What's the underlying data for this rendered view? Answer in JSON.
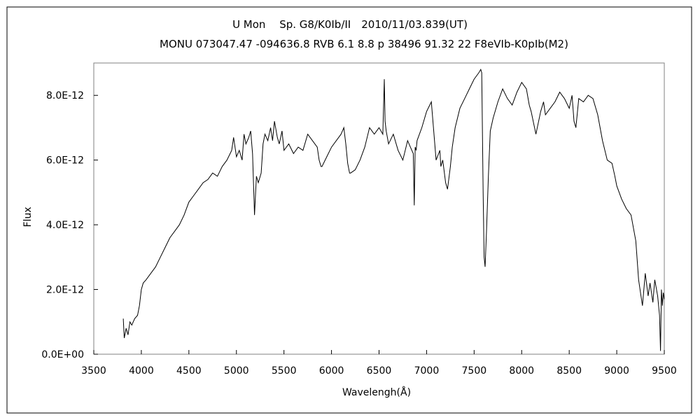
{
  "chart_data": {
    "type": "line",
    "title": "U Mon　 Sp. G8/K0Ib/II　2010/11/03.839(UT)",
    "subtitle": "MONU 073047.47 -094636.8 RVB 6.1 8.8 p 38496 91.32 22 F8eVIb-K0pIb(M2)",
    "xlabel": "Wavelengh(Å)",
    "ylabel": "Flux",
    "xlim": [
      3500,
      9500
    ],
    "ylim": [
      0,
      9e-12
    ],
    "x_ticks": [
      3500,
      4000,
      4500,
      5000,
      5500,
      6000,
      6500,
      7000,
      7500,
      8000,
      8500,
      9000,
      9500
    ],
    "x_tick_labels": [
      "3500",
      "4000",
      "4500",
      "5000",
      "5500",
      "6000",
      "6500",
      "7000",
      "7500",
      "8000",
      "8500",
      "9000",
      "9500"
    ],
    "y_ticks": [
      0,
      2e-12,
      4e-12,
      6e-12,
      8e-12
    ],
    "y_tick_labels": [
      "0.0E+00",
      "2.0E-12",
      "4.0E-12",
      "6.0E-12",
      "8.0E-12"
    ],
    "grid": false,
    "line_color": "#000000",
    "series": [
      {
        "x": [
          3810,
          3820,
          3840,
          3860,
          3880,
          3900,
          3930,
          3960,
          3980,
          4000,
          4020,
          4050,
          4100,
          4150,
          4200,
          4250,
          4300,
          4350,
          4400,
          4450,
          4500,
          4550,
          4600,
          4650,
          4700,
          4750,
          4800,
          4850,
          4900,
          4950,
          4970,
          5000,
          5030,
          5060,
          5080,
          5100,
          5130,
          5150,
          5170,
          5190,
          5210,
          5230,
          5260,
          5280,
          5300,
          5330,
          5360,
          5380,
          5400,
          5430,
          5450,
          5480,
          5500,
          5550,
          5600,
          5650,
          5700,
          5750,
          5800,
          5850,
          5870,
          5890,
          5900,
          5950,
          6000,
          6050,
          6100,
          6130,
          6150,
          6170,
          6190,
          6200,
          6250,
          6300,
          6350,
          6400,
          6450,
          6500,
          6540,
          6555,
          6563,
          6575,
          6600,
          6650,
          6700,
          6750,
          6800,
          6830,
          6860,
          6870,
          6880,
          6890,
          6900,
          6950,
          7000,
          7050,
          7100,
          7140,
          7150,
          7170,
          7200,
          7220,
          7250,
          7270,
          7300,
          7350,
          7400,
          7450,
          7500,
          7550,
          7570,
          7580,
          7595,
          7605,
          7615,
          7630,
          7650,
          7670,
          7700,
          7750,
          7800,
          7850,
          7900,
          7950,
          8000,
          8050,
          8080,
          8100,
          8150,
          8200,
          8230,
          8250,
          8300,
          8350,
          8400,
          8450,
          8500,
          8530,
          8550,
          8570,
          8600,
          8650,
          8700,
          8750,
          8800,
          8850,
          8900,
          8950,
          8980,
          9000,
          9050,
          9100,
          9150,
          9200,
          9230,
          9250,
          9270,
          9300,
          9330,
          9350,
          9380,
          9400,
          9430,
          9450,
          9460,
          9470,
          9480,
          9490,
          9500
        ],
        "y": [
          1.1e-12,
          5e-13,
          8e-13,
          6e-13,
          1e-12,
          9e-13,
          1.1e-12,
          1.2e-12,
          1.5e-12,
          2e-12,
          2.2e-12,
          2.3e-12,
          2.5e-12,
          2.7e-12,
          3e-12,
          3.3e-12,
          3.6e-12,
          3.8e-12,
          4e-12,
          4.3e-12,
          4.7e-12,
          4.9e-12,
          5.1e-12,
          5.3e-12,
          5.4e-12,
          5.6e-12,
          5.5e-12,
          5.8e-12,
          6e-12,
          6.3e-12,
          6.7e-12,
          6.1e-12,
          6.3e-12,
          6e-12,
          6.8e-12,
          6.5e-12,
          6.7e-12,
          6.9e-12,
          6.2e-12,
          4.3e-12,
          5.5e-12,
          5.3e-12,
          5.6e-12,
          6.5e-12,
          6.8e-12,
          6.6e-12,
          7e-12,
          6.6e-12,
          7.2e-12,
          6.7e-12,
          6.5e-12,
          6.9e-12,
          6.3e-12,
          6.5e-12,
          6.2e-12,
          6.4e-12,
          6.3e-12,
          6.8e-12,
          6.6e-12,
          6.4e-12,
          6e-12,
          5.8e-12,
          5.8e-12,
          6.1e-12,
          6.4e-12,
          6.6e-12,
          6.8e-12,
          7e-12,
          6.5e-12,
          5.9e-12,
          5.6e-12,
          5.6e-12,
          5.7e-12,
          6e-12,
          6.4e-12,
          7e-12,
          6.8e-12,
          7e-12,
          6.8e-12,
          8.5e-12,
          7.2e-12,
          6.9e-12,
          6.5e-12,
          6.8e-12,
          6.3e-12,
          6e-12,
          6.6e-12,
          6.4e-12,
          6.2e-12,
          4.6e-12,
          6.4e-12,
          6.3e-12,
          6.6e-12,
          7e-12,
          7.5e-12,
          7.8e-12,
          6e-12,
          6.3e-12,
          5.8e-12,
          6e-12,
          5.3e-12,
          5.1e-12,
          5.8e-12,
          6.4e-12,
          7e-12,
          7.6e-12,
          7.9e-12,
          8.2e-12,
          8.5e-12,
          8.7e-12,
          8.8e-12,
          8.7e-12,
          5e-12,
          3e-12,
          2.7e-12,
          3.8e-12,
          5.5e-12,
          6.9e-12,
          7.3e-12,
          7.8e-12,
          8.2e-12,
          7.9e-12,
          7.7e-12,
          8.1e-12,
          8.4e-12,
          8.2e-12,
          7.7e-12,
          7.5e-12,
          6.8e-12,
          7.5e-12,
          7.8e-12,
          7.4e-12,
          7.6e-12,
          7.8e-12,
          8.1e-12,
          7.9e-12,
          7.6e-12,
          8e-12,
          7.2e-12,
          7e-12,
          7.9e-12,
          7.8e-12,
          8e-12,
          7.9e-12,
          7.4e-12,
          6.6e-12,
          6e-12,
          5.9e-12,
          5.5e-12,
          5.2e-12,
          4.8e-12,
          4.5e-12,
          4.3e-12,
          3.5e-12,
          2.3e-12,
          1.9e-12,
          1.5e-12,
          2.5e-12,
          1.8e-12,
          2.2e-12,
          1.6e-12,
          2.3e-12,
          1.8e-12,
          1.2e-12,
          1e-13,
          2e-12,
          1.5e-12,
          1.9e-12,
          1.7e-12
        ]
      }
    ]
  }
}
